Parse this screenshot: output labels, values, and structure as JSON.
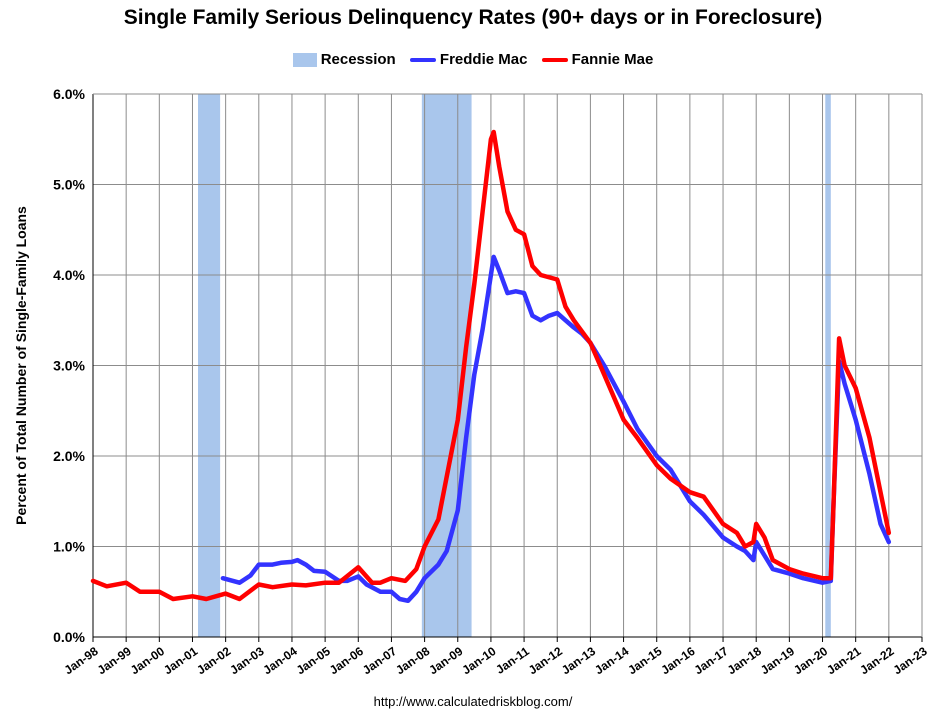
{
  "chart_data": {
    "type": "line",
    "title": "Single Family Serious Delinquency Rates (90+ days or in Foreclosure)",
    "xlabel": "",
    "ylabel": "Percent of Total Number of Single-Family Loans",
    "ylim": [
      0,
      6
    ],
    "y_tick_labels": [
      "0.0%",
      "1.0%",
      "2.0%",
      "3.0%",
      "4.0%",
      "5.0%",
      "6.0%"
    ],
    "xlim": [
      "1998-01",
      "2023-01"
    ],
    "x_tick_labels": [
      "Jan-98",
      "Jan-99",
      "Jan-00",
      "Jan-01",
      "Jan-02",
      "Jan-03",
      "Jan-04",
      "Jan-05",
      "Jan-06",
      "Jan-07",
      "Jan-08",
      "Jan-09",
      "Jan-10",
      "Jan-11",
      "Jan-12",
      "Jan-13",
      "Jan-14",
      "Jan-15",
      "Jan-16",
      "Jan-17",
      "Jan-18",
      "Jan-19",
      "Jan-20",
      "Jan-21",
      "Jan-22",
      "Jan-23"
    ],
    "grid": true,
    "legend_position": "top",
    "recessions": [
      {
        "start": "2001-03",
        "end": "2001-11"
      },
      {
        "start": "2007-12",
        "end": "2009-06"
      },
      {
        "start": "2020-02",
        "end": "2020-04"
      }
    ],
    "series": [
      {
        "name": "Freddie Mac",
        "color": "#3333ff",
        "x": [
          "2001-12",
          "2002-06",
          "2002-10",
          "2003-01",
          "2003-06",
          "2003-09",
          "2004-01",
          "2004-03",
          "2004-06",
          "2004-09",
          "2005-01",
          "2005-06",
          "2005-09",
          "2006-01",
          "2006-04",
          "2006-09",
          "2007-01",
          "2007-04",
          "2007-07",
          "2007-10",
          "2008-01",
          "2008-06",
          "2008-09",
          "2009-01",
          "2009-04",
          "2009-07",
          "2009-10",
          "2010-01",
          "2010-02",
          "2010-04",
          "2010-07",
          "2010-10",
          "2011-01",
          "2011-04",
          "2011-07",
          "2011-10",
          "2012-01",
          "2012-04",
          "2012-07",
          "2012-10",
          "2013-01",
          "2013-06",
          "2014-01",
          "2014-06",
          "2015-01",
          "2015-06",
          "2016-01",
          "2016-06",
          "2017-01",
          "2017-06",
          "2017-09",
          "2017-12",
          "2018-01",
          "2018-04",
          "2018-07",
          "2019-01",
          "2019-06",
          "2020-01",
          "2020-04",
          "2020-05",
          "2020-07",
          "2020-09",
          "2021-01",
          "2021-06",
          "2021-10",
          "2022-01"
        ],
        "values": [
          0.65,
          0.6,
          0.68,
          0.8,
          0.8,
          0.82,
          0.83,
          0.85,
          0.8,
          0.73,
          0.72,
          0.62,
          0.62,
          0.67,
          0.58,
          0.5,
          0.5,
          0.42,
          0.4,
          0.5,
          0.65,
          0.8,
          0.95,
          1.4,
          2.2,
          2.9,
          3.4,
          4.0,
          4.2,
          4.05,
          3.8,
          3.82,
          3.8,
          3.55,
          3.5,
          3.55,
          3.58,
          3.5,
          3.42,
          3.35,
          3.25,
          3.0,
          2.6,
          2.3,
          2.0,
          1.85,
          1.5,
          1.35,
          1.1,
          1.0,
          0.95,
          0.85,
          1.05,
          0.9,
          0.75,
          0.7,
          0.65,
          0.6,
          0.62,
          1.5,
          3.05,
          2.8,
          2.4,
          1.8,
          1.25,
          1.05
        ]
      },
      {
        "name": "Fannie Mae",
        "color": "#ff0000",
        "x": [
          "1998-01",
          "1998-06",
          "1999-01",
          "1999-06",
          "2000-01",
          "2000-06",
          "2001-01",
          "2001-06",
          "2002-01",
          "2002-06",
          "2003-01",
          "2003-06",
          "2004-01",
          "2004-06",
          "2005-01",
          "2005-06",
          "2006-01",
          "2006-06",
          "2006-09",
          "2007-01",
          "2007-06",
          "2007-10",
          "2008-01",
          "2008-06",
          "2009-01",
          "2009-04",
          "2009-07",
          "2009-10",
          "2010-01",
          "2010-02",
          "2010-04",
          "2010-07",
          "2010-10",
          "2011-01",
          "2011-04",
          "2011-07",
          "2012-01",
          "2012-04",
          "2012-07",
          "2013-01",
          "2013-06",
          "2014-01",
          "2014-06",
          "2015-01",
          "2015-06",
          "2016-01",
          "2016-06",
          "2017-01",
          "2017-06",
          "2017-09",
          "2017-12",
          "2018-01",
          "2018-04",
          "2018-07",
          "2019-01",
          "2019-06",
          "2020-01",
          "2020-04",
          "2020-05",
          "2020-07",
          "2020-09",
          "2021-01",
          "2021-06",
          "2021-10",
          "2022-01"
        ],
        "values": [
          0.62,
          0.56,
          0.6,
          0.5,
          0.5,
          0.42,
          0.45,
          0.42,
          0.48,
          0.42,
          0.58,
          0.55,
          0.58,
          0.57,
          0.6,
          0.6,
          0.77,
          0.6,
          0.6,
          0.65,
          0.62,
          0.75,
          1.0,
          1.3,
          2.4,
          3.2,
          3.9,
          4.7,
          5.5,
          5.58,
          5.2,
          4.7,
          4.5,
          4.45,
          4.1,
          4.0,
          3.95,
          3.65,
          3.5,
          3.25,
          2.9,
          2.4,
          2.2,
          1.9,
          1.75,
          1.6,
          1.55,
          1.25,
          1.15,
          1.0,
          1.05,
          1.25,
          1.1,
          0.85,
          0.75,
          0.7,
          0.65,
          0.65,
          1.5,
          3.3,
          3.0,
          2.75,
          2.2,
          1.6,
          1.15
        ]
      }
    ]
  },
  "legend": {
    "recession_label": "Recession",
    "freddie_label": "Freddie Mac",
    "fannie_label": "Fannie Mae",
    "recession_color": "#a9c6ec"
  },
  "source_url": "http://www.calculatedriskblog.com/"
}
